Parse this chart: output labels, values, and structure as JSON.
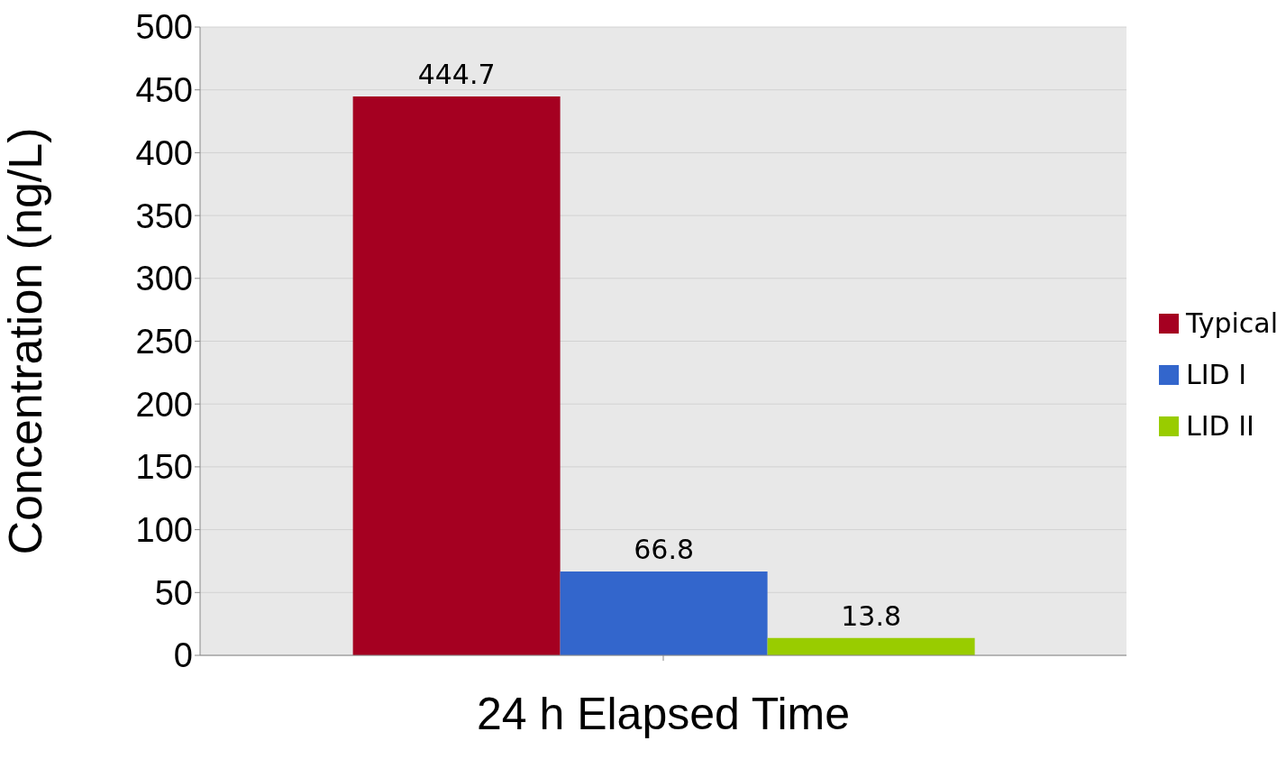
{
  "chart_data": {
    "type": "bar",
    "xlabel": "24 h Elapsed Time",
    "ylabel": "Concentration (ng/L)",
    "categories": [
      null
    ],
    "series": [
      {
        "name": "Typical",
        "color": "#a50021",
        "values": [
          444.7
        ]
      },
      {
        "name": "LID I",
        "color": "#3366cc",
        "values": [
          66.8
        ]
      },
      {
        "name": "LID II",
        "color": "#99cc00",
        "values": [
          13.8
        ]
      }
    ],
    "ylim": [
      0,
      500
    ],
    "yticks": [
      0,
      50,
      100,
      150,
      200,
      250,
      300,
      350,
      400,
      450,
      500
    ],
    "grid": "y",
    "legend": "right",
    "data_labels": true
  }
}
